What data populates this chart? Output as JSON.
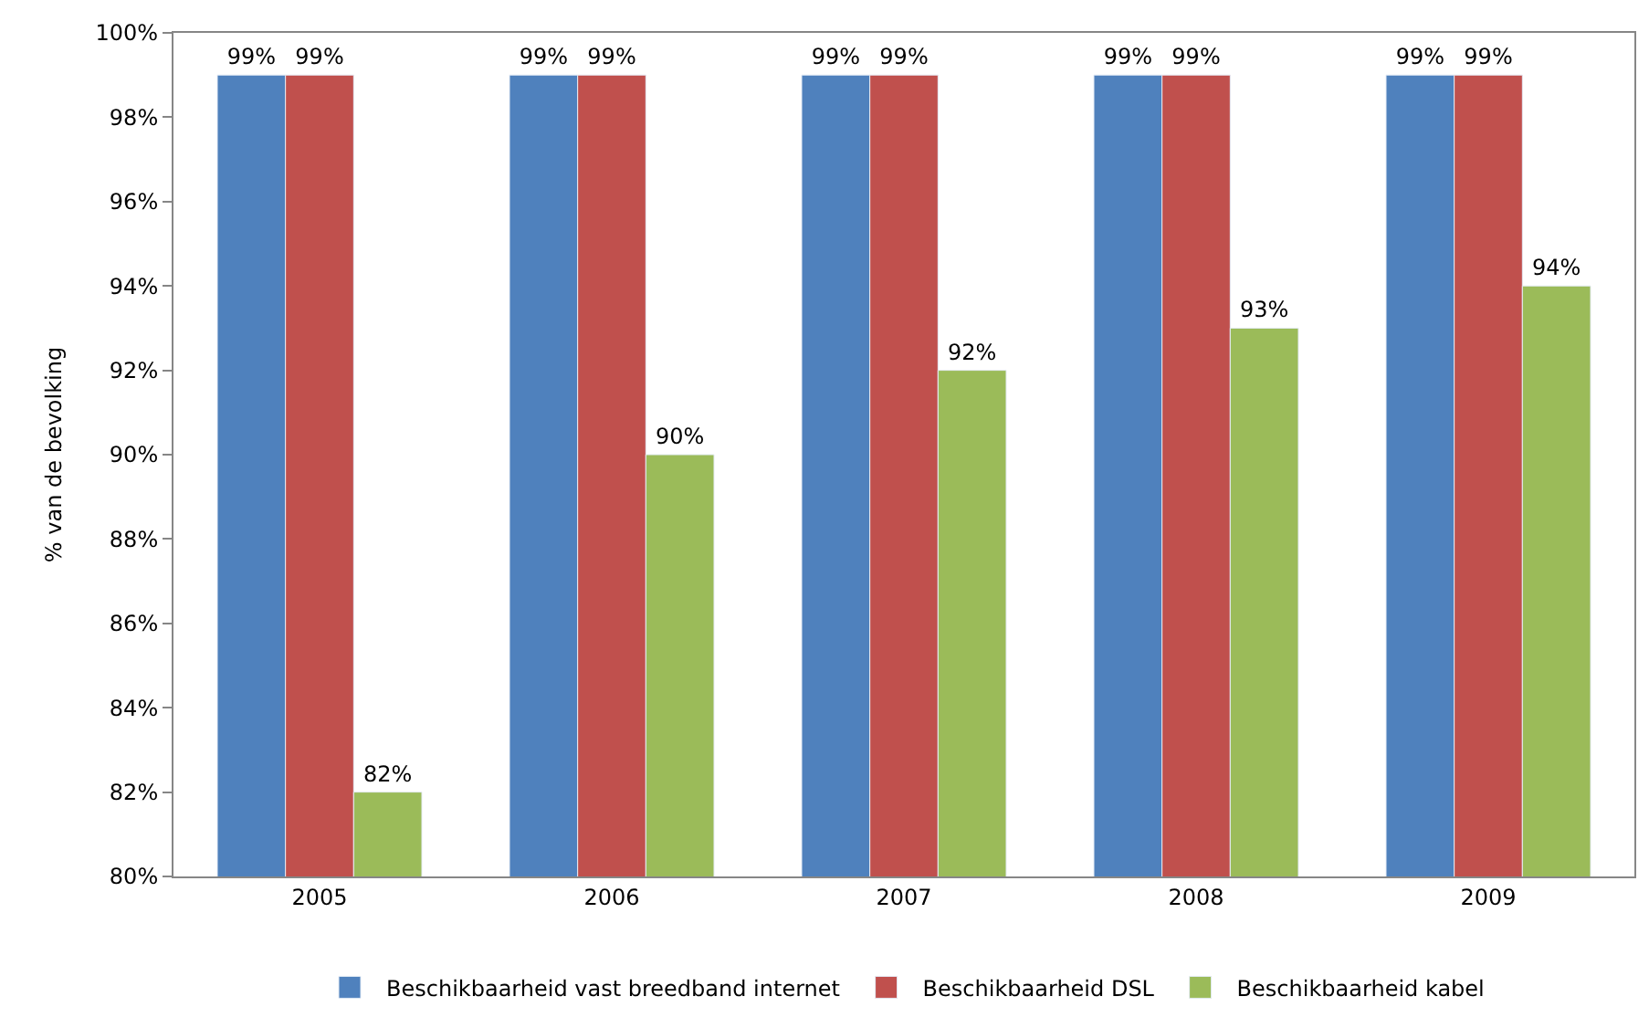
{
  "chart_data": {
    "type": "bar",
    "ylabel": "% van de bevolking",
    "categories": [
      "2005",
      "2006",
      "2007",
      "2008",
      "2009"
    ],
    "series": [
      {
        "name": "Beschikbaarheid vast breedband internet",
        "color": "#4f81bd",
        "values": [
          99,
          99,
          99,
          99,
          99
        ],
        "value_labels": [
          "99%",
          "99%",
          "99%",
          "99%",
          "99%"
        ]
      },
      {
        "name": "Beschikbaarheid DSL",
        "color": "#c0504d",
        "values": [
          99,
          99,
          99,
          99,
          99
        ],
        "value_labels": [
          "99%",
          "99%",
          "99%",
          "99%",
          "99%"
        ]
      },
      {
        "name": "Beschikbaarheid kabel",
        "color": "#9bbb59",
        "values": [
          82,
          90,
          92,
          93,
          94
        ],
        "value_labels": [
          "82%",
          "90%",
          "92%",
          "93%",
          "94%"
        ]
      }
    ],
    "ylim": [
      80,
      100
    ],
    "yticks": [
      {
        "value": 80,
        "label": "80%"
      },
      {
        "value": 82,
        "label": "82%"
      },
      {
        "value": 84,
        "label": "84%"
      },
      {
        "value": 86,
        "label": "86%"
      },
      {
        "value": 88,
        "label": "88%"
      },
      {
        "value": 90,
        "label": "90%"
      },
      {
        "value": 92,
        "label": "92%"
      },
      {
        "value": 94,
        "label": "94%"
      },
      {
        "value": 96,
        "label": "96%"
      },
      {
        "value": 98,
        "label": "98%"
      },
      {
        "value": 100,
        "label": "100%"
      }
    ],
    "grid": false,
    "legend": "bottom"
  }
}
